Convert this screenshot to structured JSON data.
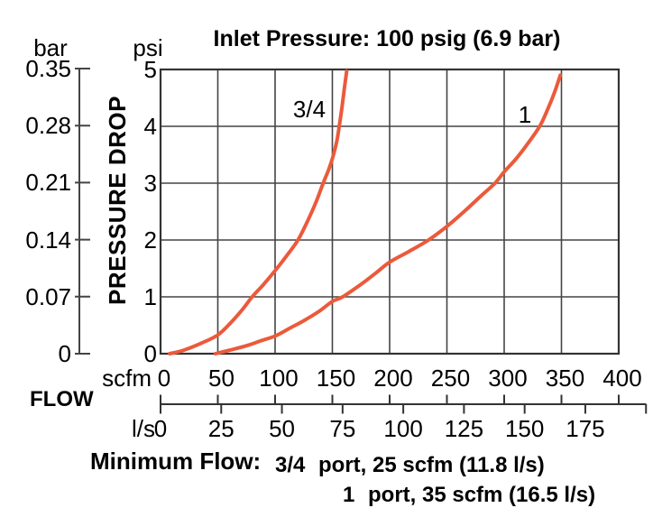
{
  "title": "Inlet Pressure: 100 psig (6.9 bar)",
  "colors": {
    "curve": "#EB5A3B",
    "grid": "#444444",
    "border": "#333333",
    "text": "#000000",
    "background": "#FFFFFF"
  },
  "y_axis": {
    "unit_secondary": "bar",
    "unit_primary": "psi",
    "label": "PRESSURE DROP",
    "bar_ticks": [
      "0.35",
      "0.28",
      "0.21",
      "0.14",
      "0.07",
      "0"
    ],
    "psi_ticks": [
      "5",
      "4",
      "3",
      "2",
      "1",
      "0"
    ]
  },
  "x_axis": {
    "label": "FLOW",
    "unit_primary": "scfm",
    "unit_secondary": "l/s",
    "scfm_ticks": [
      "0",
      "50",
      "100",
      "150",
      "200",
      "250",
      "300",
      "350",
      "400"
    ],
    "ls_ticks": [
      "0",
      "25",
      "50",
      "75",
      "100",
      "125",
      "150",
      "175"
    ]
  },
  "footnote": {
    "label": "Minimum Flow:",
    "rows": [
      {
        "port": "3/4",
        "text": "port, 25 scfm (11.8 l/s)"
      },
      {
        "port": "1",
        "text": "port, 35 scfm (16.5 l/s)"
      }
    ]
  },
  "chart_data": {
    "type": "line",
    "title": "Inlet Pressure: 100 psig (6.9 bar)",
    "xlabel": "FLOW (scfm)",
    "ylabel": "PRESSURE DROP (psi)",
    "xlim": [
      0,
      400
    ],
    "ylim": [
      0,
      5
    ],
    "secondary_x_unit": "l/s",
    "secondary_x_ticks": [
      0,
      25,
      50,
      75,
      100,
      125,
      150,
      175
    ],
    "scfm_per_ls": 2.119,
    "grid": true,
    "legend_position": "inline-curve-labels",
    "series": [
      {
        "name": "3/4",
        "points_scfm_psi": [
          [
            8,
            0
          ],
          [
            20,
            0.06
          ],
          [
            35,
            0.18
          ],
          [
            50,
            0.33
          ],
          [
            62,
            0.56
          ],
          [
            72,
            0.79
          ],
          [
            80,
            1.0
          ],
          [
            90,
            1.22
          ],
          [
            100,
            1.46
          ],
          [
            110,
            1.72
          ],
          [
            120,
            2.0
          ],
          [
            129,
            2.36
          ],
          [
            136,
            2.68
          ],
          [
            142,
            3.0
          ],
          [
            147,
            3.25
          ],
          [
            151,
            3.5
          ],
          [
            154,
            3.75
          ],
          [
            156,
            4.0
          ],
          [
            158.5,
            4.35
          ],
          [
            160.5,
            4.67
          ],
          [
            162.5,
            4.97
          ]
        ]
      },
      {
        "name": "1",
        "points_scfm_psi": [
          [
            48,
            0
          ],
          [
            60,
            0.06
          ],
          [
            75,
            0.14
          ],
          [
            88,
            0.23
          ],
          [
            100,
            0.31
          ],
          [
            113,
            0.45
          ],
          [
            125,
            0.58
          ],
          [
            138,
            0.74
          ],
          [
            150,
            0.92
          ],
          [
            159,
            1.0
          ],
          [
            175,
            1.22
          ],
          [
            188,
            1.42
          ],
          [
            200,
            1.61
          ],
          [
            217,
            1.8
          ],
          [
            234,
            2.0
          ],
          [
            250,
            2.24
          ],
          [
            265,
            2.5
          ],
          [
            280,
            2.78
          ],
          [
            292,
            3.0
          ],
          [
            300,
            3.2
          ],
          [
            310,
            3.42
          ],
          [
            320,
            3.68
          ],
          [
            331,
            4.0
          ],
          [
            338,
            4.3
          ],
          [
            344,
            4.6
          ],
          [
            349,
            4.9
          ]
        ]
      }
    ]
  }
}
